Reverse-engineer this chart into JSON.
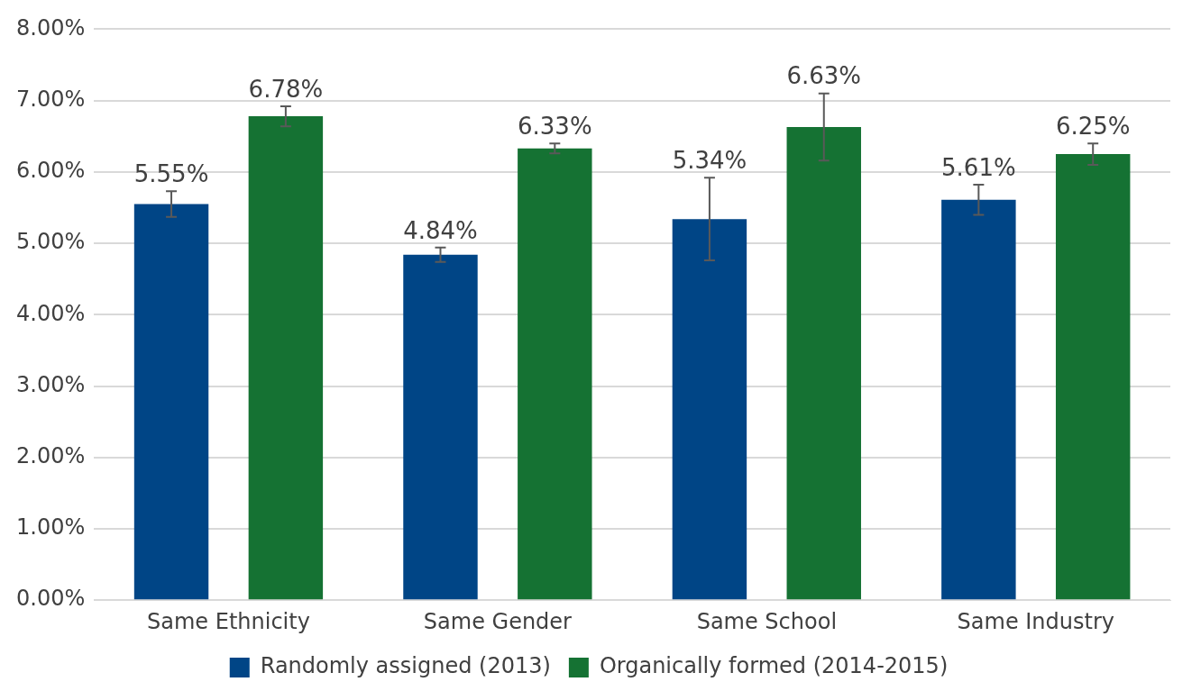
{
  "chart_data": {
    "type": "bar",
    "categories": [
      "Same Ethnicity",
      "Same Gender",
      "Same School",
      "Same Industry"
    ],
    "series": [
      {
        "name": "Randomly assigned (2013)",
        "color": "#004586",
        "values": [
          5.55,
          4.84,
          5.34,
          5.61
        ],
        "errors": [
          0.18,
          0.1,
          0.58,
          0.21
        ],
        "value_labels": [
          "5.55%",
          "4.84%",
          "5.34%",
          "5.61%"
        ]
      },
      {
        "name": "Organically formed (2014-2015)",
        "color": "#157233",
        "values": [
          6.78,
          6.33,
          6.63,
          6.25
        ],
        "errors": [
          0.14,
          0.07,
          0.47,
          0.15
        ],
        "value_labels": [
          "6.78%",
          "6.33%",
          "6.63%",
          "6.25%"
        ]
      }
    ],
    "ylim": [
      0,
      8
    ],
    "yticks": [
      {
        "value": 0,
        "label": "0.00%"
      },
      {
        "value": 1,
        "label": "1.00%"
      },
      {
        "value": 2,
        "label": "2.00%"
      },
      {
        "value": 3,
        "label": "3.00%"
      },
      {
        "value": 4,
        "label": "4.00%"
      },
      {
        "value": 5,
        "label": "5.00%"
      },
      {
        "value": 6,
        "label": "6.00%"
      },
      {
        "value": 7,
        "label": "7.00%"
      },
      {
        "value": 8,
        "label": "8.00%"
      }
    ],
    "grid": "y",
    "legend": "bottom"
  }
}
